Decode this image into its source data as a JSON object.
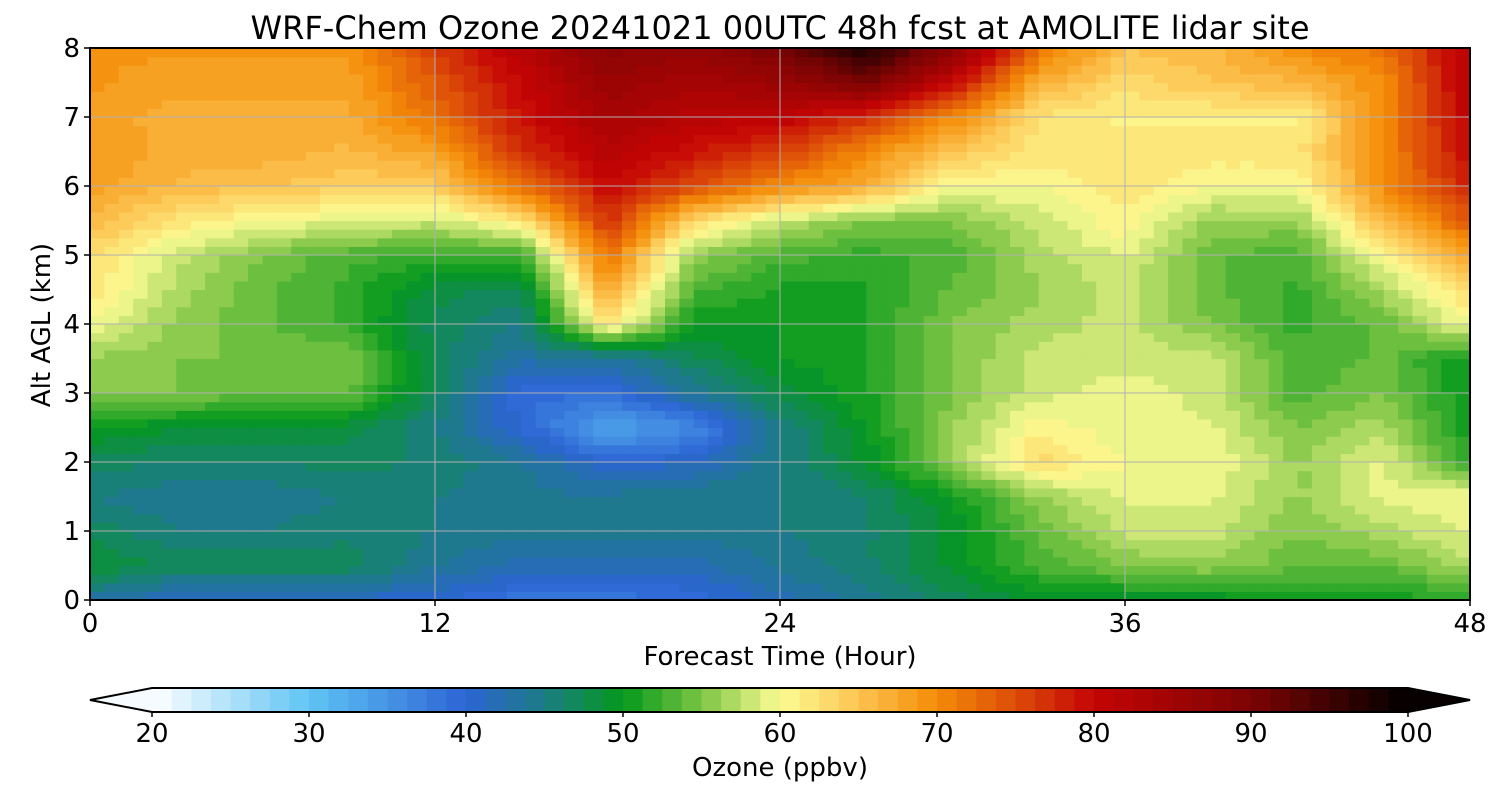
{
  "chart_data": {
    "type": "heatmap",
    "title": "WRF-Chem Ozone  20241021 00UTC 48h fcst at AMOLITE lidar site",
    "xlabel": "Forecast Time (Hour)",
    "ylabel": "Alt AGL (km)",
    "xlim": [
      0,
      48
    ],
    "ylim": [
      0,
      8
    ],
    "xticks": [
      0,
      12,
      24,
      36,
      48
    ],
    "yticks": [
      0,
      1,
      2,
      3,
      4,
      5,
      6,
      7,
      8
    ],
    "grid": true,
    "colorbar": {
      "label": "Ozone  (ppbv)",
      "min": 20,
      "max": 100,
      "ticks": [
        20,
        30,
        40,
        50,
        60,
        70,
        80,
        90,
        100
      ],
      "extend": "both",
      "stops": [
        {
          "value": 20,
          "color": "#ffffff"
        },
        {
          "value": 30,
          "color": "#60c4f4"
        },
        {
          "value": 40,
          "color": "#2c64d4"
        },
        {
          "value": 45,
          "color": "#1c7c84"
        },
        {
          "value": 50,
          "color": "#04981c"
        },
        {
          "value": 55,
          "color": "#7cc444"
        },
        {
          "value": 60,
          "color": "#fcfc94"
        },
        {
          "value": 65,
          "color": "#fcc450"
        },
        {
          "value": 70,
          "color": "#f48c08"
        },
        {
          "value": 75,
          "color": "#dc4c08"
        },
        {
          "value": 80,
          "color": "#c40404"
        },
        {
          "value": 90,
          "color": "#7c0404"
        },
        {
          "value": 100,
          "color": "#000000"
        }
      ]
    },
    "x": [
      0,
      3,
      6,
      9,
      12,
      15,
      18,
      21,
      24,
      27,
      30,
      33,
      36,
      39,
      42,
      45,
      48
    ],
    "y": [
      0,
      0.5,
      1,
      1.5,
      2,
      2.5,
      3,
      3.5,
      4,
      4.5,
      5,
      5.5,
      6,
      6.5,
      7,
      7.5,
      8
    ],
    "z": [
      [
        43,
        41,
        41,
        41,
        40,
        38,
        38,
        39,
        42,
        44,
        47,
        49,
        49,
        49,
        50,
        50,
        52
      ],
      [
        49,
        47,
        47,
        47,
        44,
        42,
        42,
        42,
        44,
        46,
        49,
        53,
        55,
        56,
        54,
        54,
        57
      ],
      [
        47,
        45,
        45,
        46,
        45,
        44,
        44,
        44,
        45,
        46,
        49,
        54,
        58,
        58,
        55,
        57,
        59
      ],
      [
        45,
        44,
        44,
        45,
        45,
        44,
        44,
        45,
        45,
        46,
        50,
        56,
        59,
        59,
        56,
        59,
        60
      ],
      [
        47,
        46,
        46,
        47,
        46,
        44,
        40,
        41,
        45,
        49,
        56,
        63,
        60,
        60,
        56,
        59,
        52
      ],
      [
        50,
        49,
        49,
        48,
        45,
        40,
        33,
        36,
        45,
        50,
        56,
        61,
        59,
        59,
        55,
        57,
        50
      ],
      [
        55,
        55,
        54,
        54,
        47,
        39,
        39,
        44,
        48,
        51,
        55,
        58,
        60,
        58,
        53,
        55,
        50
      ],
      [
        56,
        55,
        55,
        55,
        47,
        43,
        43,
        47,
        50,
        51,
        55,
        58,
        58,
        58,
        53,
        54,
        50
      ],
      [
        60,
        56,
        54,
        52,
        47,
        45,
        62,
        50,
        50,
        51,
        55,
        57,
        58,
        55,
        52,
        54,
        60
      ],
      [
        62,
        57,
        54,
        52,
        48,
        47,
        68,
        53,
        51,
        51,
        54,
        56,
        58,
        54,
        52,
        57,
        63
      ],
      [
        63,
        58,
        55,
        53,
        52,
        52,
        72,
        56,
        53,
        52,
        53,
        57,
        59,
        54,
        53,
        60,
        68
      ],
      [
        66,
        62,
        60,
        59,
        58,
        62,
        77,
        63,
        58,
        55,
        55,
        58,
        61,
        56,
        56,
        66,
        74
      ],
      [
        68,
        66,
        65,
        64,
        64,
        72,
        80,
        75,
        70,
        67,
        60,
        60,
        62,
        60,
        60,
        70,
        78
      ],
      [
        69,
        67,
        67,
        66,
        68,
        77,
        82,
        79,
        76,
        70,
        65,
        62,
        62,
        62,
        62,
        70,
        80
      ],
      [
        68,
        67,
        67,
        67,
        72,
        79,
        84,
        82,
        81,
        77,
        70,
        62,
        61,
        61,
        61,
        70,
        81
      ],
      [
        69,
        68,
        68,
        68,
        74,
        80,
        86,
        84,
        86,
        90,
        80,
        67,
        63,
        65,
        66,
        70,
        82
      ],
      [
        69,
        69,
        69,
        69,
        76,
        82,
        88,
        87,
        90,
        98,
        88,
        72,
        65,
        66,
        70,
        72,
        82
      ]
    ]
  }
}
